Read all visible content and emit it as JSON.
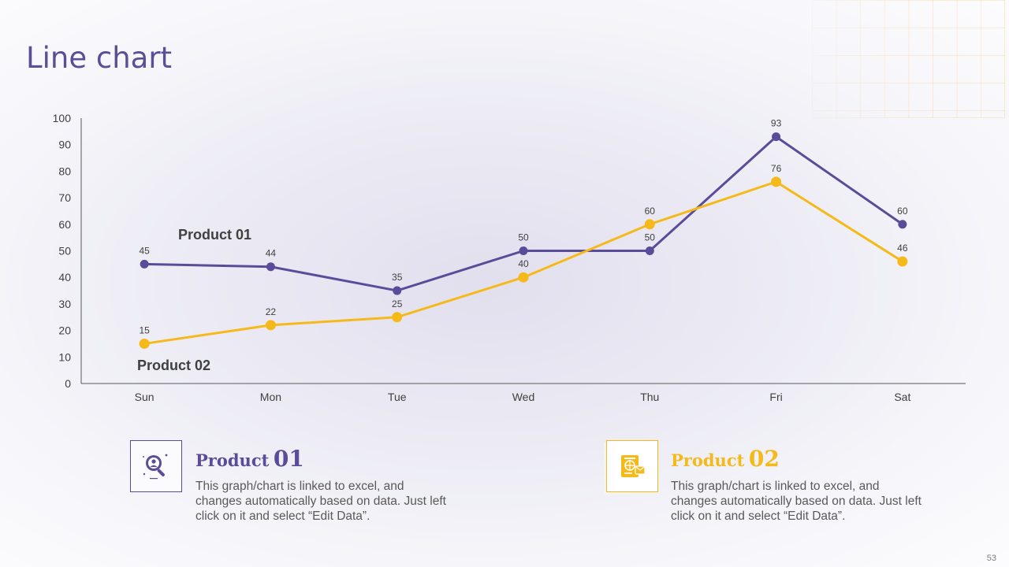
{
  "title": "Line chart",
  "colors": {
    "product01": "#5b4c9a",
    "product02": "#f6b91a",
    "axis": "#595959",
    "text": "#404040"
  },
  "chart_data": {
    "type": "line",
    "categories": [
      "Sun",
      "Mon",
      "Tue",
      "Wed",
      "Thu",
      "Fri",
      "Sat"
    ],
    "ylim": [
      0,
      100
    ],
    "yticks": [
      0,
      10,
      20,
      30,
      40,
      50,
      60,
      70,
      80,
      90,
      100
    ],
    "grid": false,
    "series": [
      {
        "name": "Product 01",
        "values": [
          45,
          44,
          35,
          50,
          50,
          93,
          60
        ]
      },
      {
        "name": "Product 02",
        "values": [
          15,
          22,
          25,
          40,
          60,
          76,
          46
        ]
      }
    ]
  },
  "products": [
    {
      "heading_word": "Product",
      "heading_num": "01",
      "icon": "search-user-icon",
      "description": "This graph/chart is linked to excel, and changes automatically based on data. Just left click on it and select “Edit Data”."
    },
    {
      "heading_word": "Product",
      "heading_num": "02",
      "icon": "passport-document-icon",
      "description": "This graph/chart is linked to excel, and changes automatically based on data. Just left click on it and select “Edit Data”."
    }
  ],
  "page_number": "53"
}
